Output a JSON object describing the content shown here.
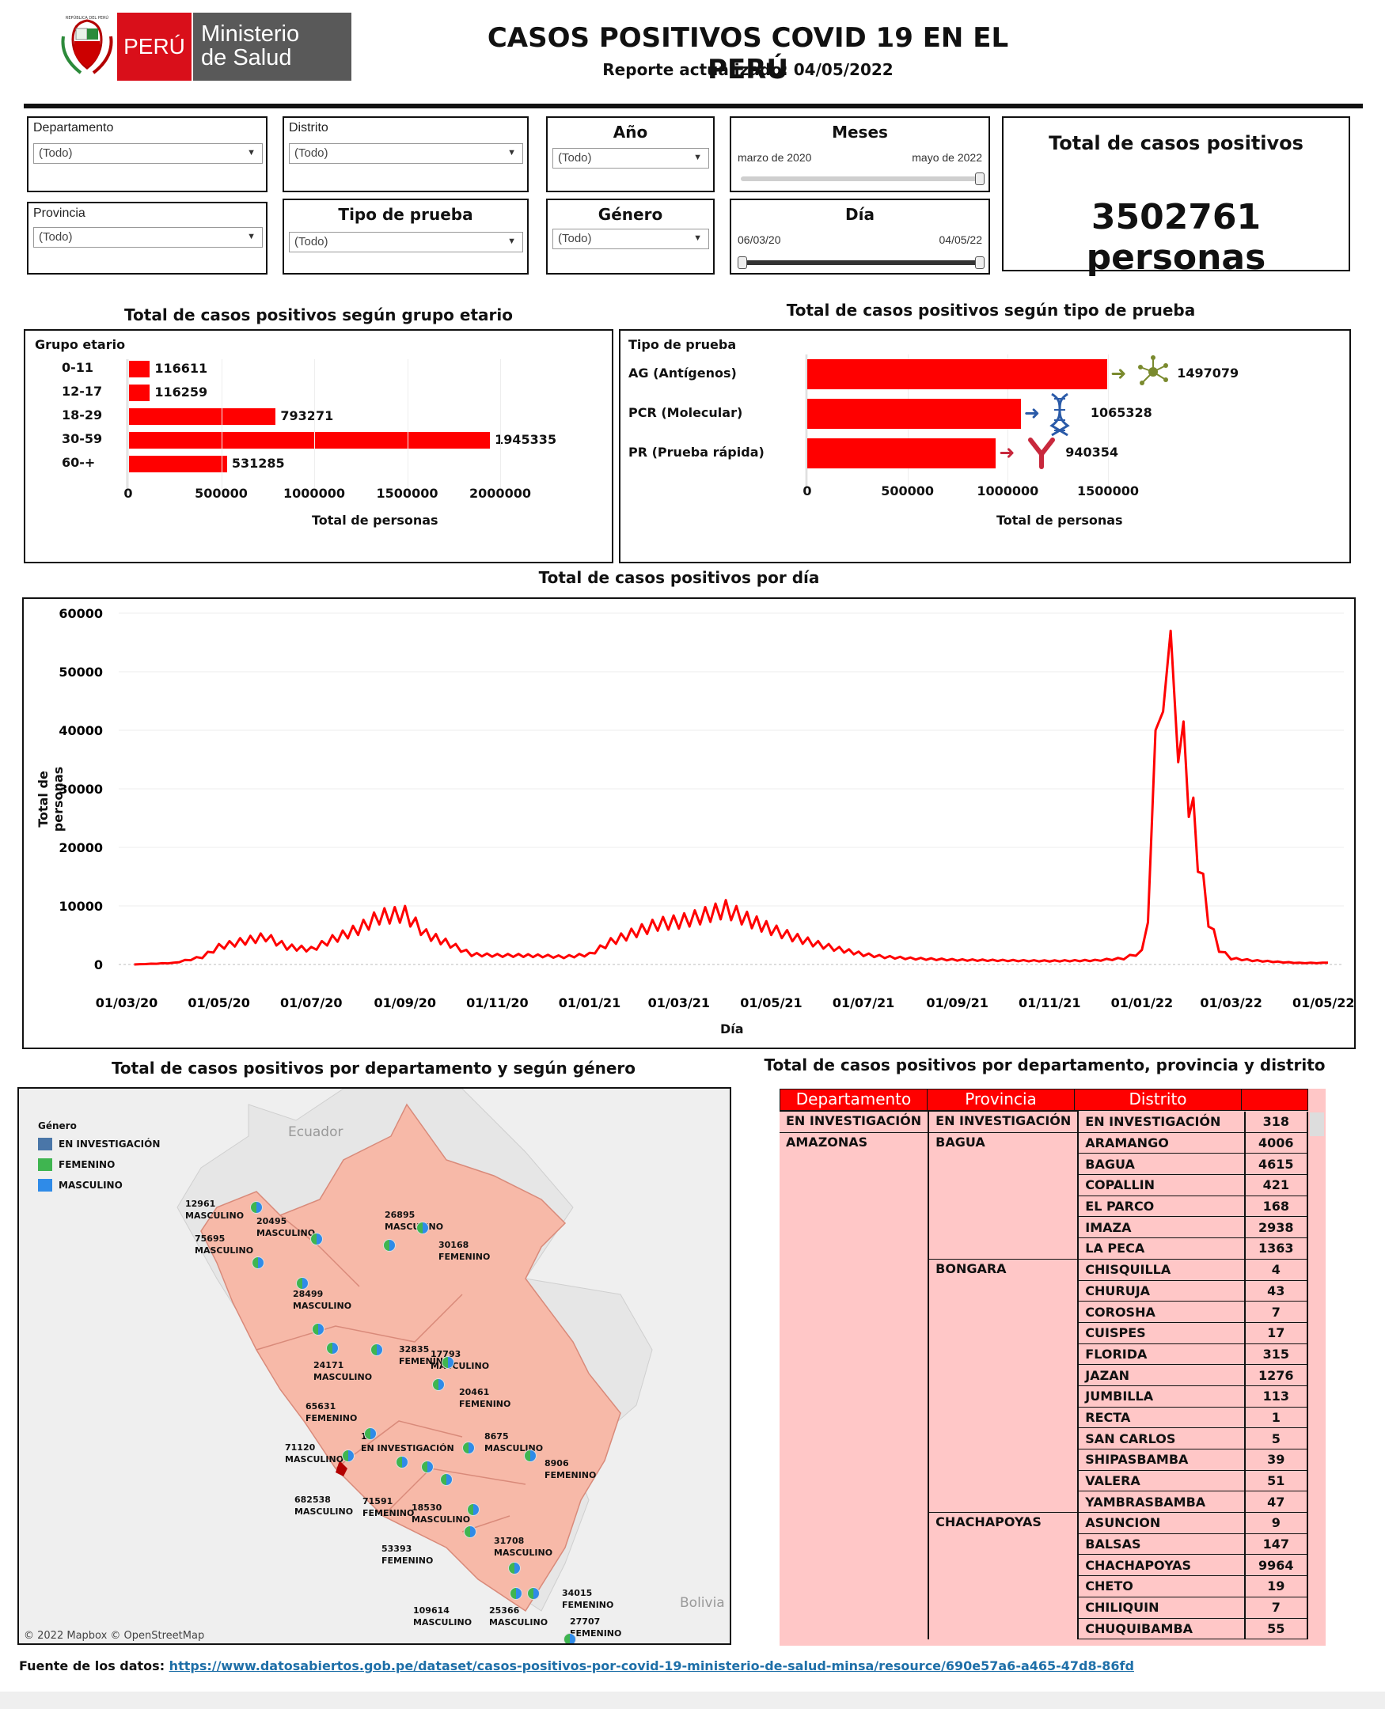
{
  "header": {
    "title": "CASOS POSITIVOS COVID 19 EN EL PERÚ",
    "subtitle": "Reporte actualizado: 04/05/2022",
    "logo_country": "PERÚ",
    "logo_ministry_line1": "Ministerio",
    "logo_ministry_line2": "de Salud",
    "logo_seal_text": "REPÚBLICA DEL PERÚ"
  },
  "filters": {
    "departamento": {
      "label": "Departamento",
      "value": "(Todo)"
    },
    "distrito": {
      "label": "Distrito",
      "value": "(Todo)"
    },
    "anio": {
      "label": "Año",
      "value": "(Todo)"
    },
    "meses": {
      "label": "Meses",
      "start": "marzo de 2020",
      "end": "mayo de 2022"
    },
    "provincia": {
      "label": "Provincia",
      "value": "(Todo)"
    },
    "tipo_prueba": {
      "label": "Tipo de prueba",
      "value": "(Todo)"
    },
    "genero": {
      "label": "Género",
      "value": "(Todo)"
    },
    "dia": {
      "label": "Día",
      "start": "06/03/20",
      "end": "04/05/22"
    }
  },
  "kpi": {
    "label": "Total de casos positivos",
    "value": "3502761 personas"
  },
  "age_chart": {
    "title": "Total de casos positivos según grupo etario",
    "header": "Grupo etario",
    "xlabel": "Total de personas",
    "ticks": [
      "0",
      "500000",
      "1000000",
      "1500000",
      "2000000"
    ],
    "rows": [
      {
        "label": "0-11",
        "value": 116611,
        "text": "116611"
      },
      {
        "label": "12-17",
        "value": 116259,
        "text": "116259"
      },
      {
        "label": "18-29",
        "value": 793271,
        "text": "793271"
      },
      {
        "label": "30-59",
        "value": 1945335,
        "text": "1945335"
      },
      {
        "label": "60-+",
        "value": 531285,
        "text": "531285"
      }
    ]
  },
  "test_chart": {
    "title": "Total de casos positivos según tipo de prueba",
    "header": "Tipo de prueba",
    "xlabel": "Total de personas",
    "ticks": [
      "0",
      "500000",
      "1000000",
      "1500000"
    ],
    "rows": [
      {
        "label": "AG (Antígenos)",
        "value": 1497079,
        "text": "1497079",
        "icon": "virus-icon",
        "color": "#7a8a2e"
      },
      {
        "label": "PCR (Molecular)",
        "value": 1065328,
        "text": "1065328",
        "icon": "dna-icon",
        "color": "#2a5aa8"
      },
      {
        "label": "PR (Prueba rápida)",
        "value": 940354,
        "text": "940354",
        "icon": "antibody-icon",
        "color": "#c8283c"
      }
    ]
  },
  "daily_chart": {
    "title": "Total de casos positivos por día",
    "ylabel": "Total de personas",
    "xlabel": "Día",
    "yticks": [
      "60000",
      "50000",
      "40000",
      "30000",
      "20000",
      "10000",
      "0"
    ],
    "xticks": [
      "01/03/20",
      "01/05/20",
      "01/07/20",
      "01/09/20",
      "01/11/20",
      "01/01/21",
      "01/03/21",
      "01/05/21",
      "01/07/21",
      "01/09/21",
      "01/11/21",
      "01/01/22",
      "01/03/22",
      "01/05/22"
    ]
  },
  "chart_data": {
    "type": "line",
    "title": "Total de casos positivos por día",
    "xlabel": "Día",
    "ylabel": "Total de personas",
    "ylim": [
      0,
      60000
    ],
    "x_range": [
      "2020-03-01",
      "2022-05-04"
    ],
    "series": [
      {
        "x": [
          "2020-03-06",
          "2020-04-01",
          "2020-04-20",
          "2020-05-01",
          "2020-05-15",
          "2020-06-01",
          "2020-06-15",
          "2020-07-01",
          "2020-07-15",
          "2020-08-01",
          "2020-08-15",
          "2020-09-01",
          "2020-09-15",
          "2020-10-01",
          "2020-10-15",
          "2020-11-01",
          "2020-11-15",
          "2020-12-01",
          "2020-12-15",
          "2021-01-01",
          "2021-01-15",
          "2021-02-01",
          "2021-02-15",
          "2021-03-01",
          "2021-03-15",
          "2021-04-01",
          "2021-04-15",
          "2021-05-01",
          "2021-05-15",
          "2021-06-01",
          "2021-06-15",
          "2021-07-01",
          "2021-07-15",
          "2021-08-01",
          "2021-09-01",
          "2021-10-01",
          "2021-11-01",
          "2021-12-01",
          "2021-12-20",
          "2022-01-01",
          "2022-01-05",
          "2022-01-10",
          "2022-01-15",
          "2022-01-20",
          "2022-01-25",
          "2022-02-01",
          "2022-02-07",
          "2022-02-14",
          "2022-02-21",
          "2022-03-01",
          "2022-03-15",
          "2022-04-01",
          "2022-04-15",
          "2022-05-04"
        ],
        "values": [
          0,
          300,
          1500,
          3500,
          4500,
          5500,
          3500,
          3000,
          5000,
          7000,
          9500,
          10000,
          6000,
          4000,
          2000,
          1800,
          1800,
          1700,
          1500,
          2000,
          4500,
          6500,
          8000,
          8500,
          9500,
          11000,
          9000,
          7000,
          5500,
          4000,
          3000,
          2000,
          1500,
          1200,
          900,
          800,
          700,
          800,
          1200,
          2500,
          10000,
          40000,
          60000,
          57000,
          48000,
          35000,
          22000,
          9000,
          3000,
          1200,
          800,
          500,
          300,
          300
        ]
      }
    ]
  },
  "map": {
    "title": "Total de casos positivos por departamento y según género",
    "legend_title": "Género",
    "legend": [
      {
        "label": "EN INVESTIGACIÓN",
        "color": "#4a76a8"
      },
      {
        "label": "FEMENINO",
        "color": "#3fb550"
      },
      {
        "label": "MASCULINO",
        "color": "#2f8be8"
      }
    ],
    "country_labels": [
      "Ecuador",
      "Bolivia"
    ],
    "attribution": "© 2022 Mapbox © OpenStreetMap",
    "labels": [
      {
        "value": "12961",
        "gender": "MASCULINO"
      },
      {
        "value": "20495",
        "gender": "MASCULINO"
      },
      {
        "value": "75695",
        "gender": "MASCULINO"
      },
      {
        "value": "26895",
        "gender": "MASCULINO"
      },
      {
        "value": "30168",
        "gender": "FEMENINO"
      },
      {
        "value": "28499",
        "gender": "MASCULINO"
      },
      {
        "value": "32835",
        "gender": "FEMENINO"
      },
      {
        "value": "17793",
        "gender": "MASCULINO"
      },
      {
        "value": "24171",
        "gender": "MASCULINO"
      },
      {
        "value": "20461",
        "gender": "FEMENINO"
      },
      {
        "value": "65631",
        "gender": "FEMENINO"
      },
      {
        "value": "1",
        "gender": "EN INVESTIGACIÓN"
      },
      {
        "value": "8675",
        "gender": "MASCULINO"
      },
      {
        "value": "71120",
        "gender": "MASCULINO"
      },
      {
        "value": "8906",
        "gender": "FEMENINO"
      },
      {
        "value": "682538",
        "gender": "MASCULINO"
      },
      {
        "value": "71591",
        "gender": "FEMENINO"
      },
      {
        "value": "18530",
        "gender": "MASCULINO"
      },
      {
        "value": "31708",
        "gender": "MASCULINO"
      },
      {
        "value": "53393",
        "gender": "FEMENINO"
      },
      {
        "value": "34015",
        "gender": "FEMENINO"
      },
      {
        "value": "109614",
        "gender": "MASCULINO"
      },
      {
        "value": "25366",
        "gender": "MASCULINO"
      },
      {
        "value": "27707",
        "gender": "FEMENINO"
      }
    ]
  },
  "table": {
    "title": "Total de casos positivos por departamento, provincia y distrito",
    "headers": [
      "Departamento",
      "Provincia",
      "Distrito",
      ""
    ],
    "groups": [
      {
        "dep": "EN INVESTIGACIÓN",
        "prov": "EN INVESTIGACIÓN",
        "rows": [
          {
            "d": "EN INVESTIGACIÓN",
            "n": "318"
          }
        ]
      },
      {
        "dep": "AMAZONAS",
        "prov": "BAGUA",
        "rows": [
          {
            "d": "ARAMANGO",
            "n": "4006"
          },
          {
            "d": "BAGUA",
            "n": "4615"
          },
          {
            "d": "COPALLIN",
            "n": "421"
          },
          {
            "d": "EL PARCO",
            "n": "168"
          },
          {
            "d": "IMAZA",
            "n": "2938"
          },
          {
            "d": "LA PECA",
            "n": "1363"
          }
        ]
      },
      {
        "dep": "",
        "prov": "BONGARA",
        "rows": [
          {
            "d": "CHISQUILLA",
            "n": "4"
          },
          {
            "d": "CHURUJA",
            "n": "43"
          },
          {
            "d": "COROSHA",
            "n": "7"
          },
          {
            "d": "CUISPES",
            "n": "17"
          },
          {
            "d": "FLORIDA",
            "n": "315"
          },
          {
            "d": "JAZAN",
            "n": "1276"
          },
          {
            "d": "JUMBILLA",
            "n": "113"
          },
          {
            "d": "RECTA",
            "n": "1"
          },
          {
            "d": "SAN CARLOS",
            "n": "5"
          },
          {
            "d": "SHIPASBAMBA",
            "n": "39"
          },
          {
            "d": "VALERA",
            "n": "51"
          },
          {
            "d": "YAMBRASBAMBA",
            "n": "47"
          }
        ]
      },
      {
        "dep": "",
        "prov": "CHACHAPOYAS",
        "rows": [
          {
            "d": "ASUNCION",
            "n": "9"
          },
          {
            "d": "BALSAS",
            "n": "147"
          },
          {
            "d": "CHACHAPOYAS",
            "n": "9964"
          },
          {
            "d": "CHETO",
            "n": "19"
          },
          {
            "d": "CHILIQUIN",
            "n": "7"
          },
          {
            "d": "CHUQUIBAMBA",
            "n": "55"
          }
        ]
      }
    ]
  },
  "footer": {
    "label": "Fuente de los datos:",
    "link": "https://www.datosabiertos.gob.pe/dataset/casos-positivos-por-covid-19-ministerio-de-salud-minsa/resource/690e57a6-a465-47d8-86fd"
  }
}
